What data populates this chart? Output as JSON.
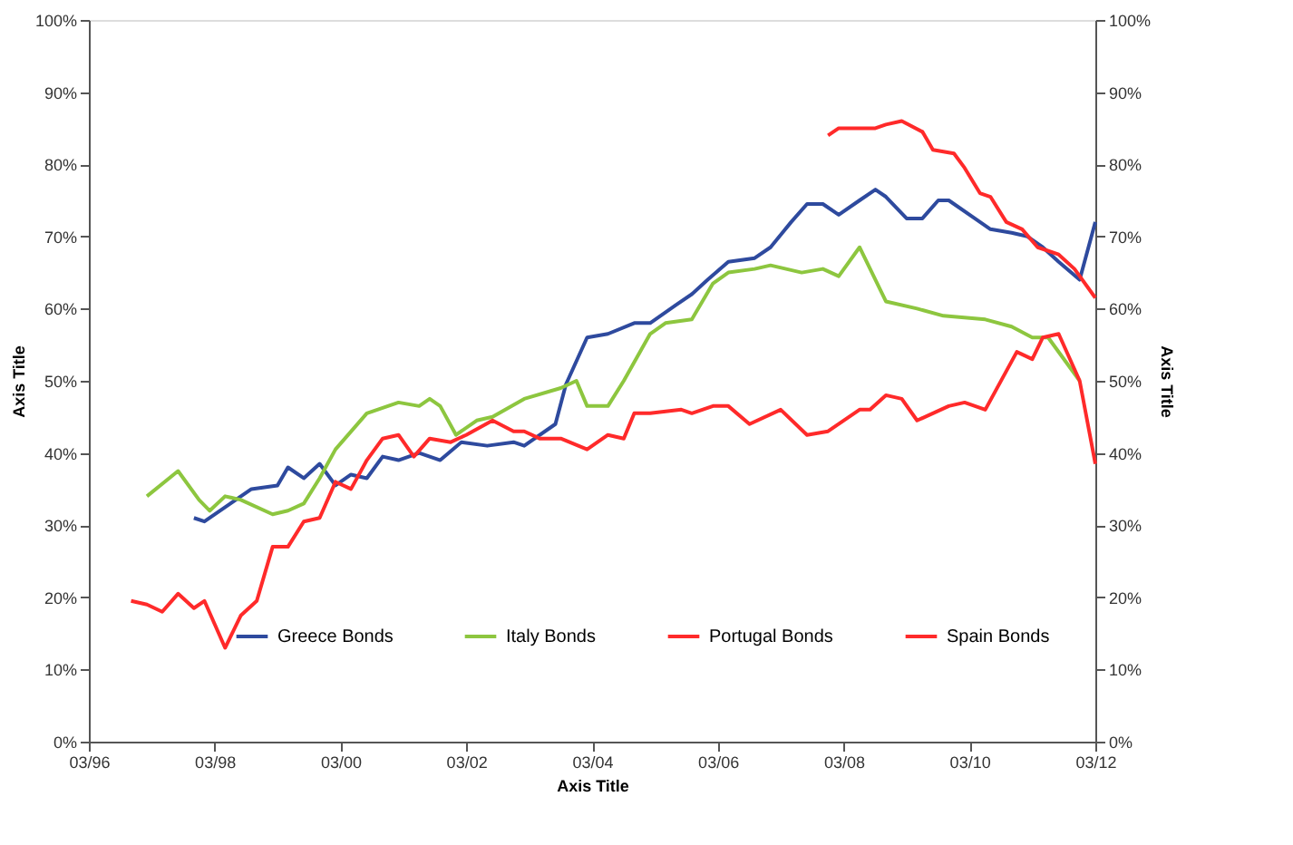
{
  "chart_data": {
    "type": "line",
    "xlabel": "Axis Title",
    "ylabel": "Axis Title",
    "y2label": "Axis Title",
    "xlim": [
      "1996-03",
      "2012-03"
    ],
    "xticks": [
      {
        "value": "1996-03",
        "label": "03/96"
      },
      {
        "value": "1998-03",
        "label": "03/98"
      },
      {
        "value": "2000-03",
        "label": "03/00"
      },
      {
        "value": "2002-03",
        "label": "03/02"
      },
      {
        "value": "2004-03",
        "label": "03/04"
      },
      {
        "value": "2006-03",
        "label": "03/06"
      },
      {
        "value": "2008-03",
        "label": "03/08"
      },
      {
        "value": "2010-03",
        "label": "03/10"
      },
      {
        "value": "2012-03",
        "label": "03/12"
      }
    ],
    "ylim": [
      0,
      100
    ],
    "yticks": [
      {
        "value": 0,
        "label": "0%"
      },
      {
        "value": 10,
        "label": "10%"
      },
      {
        "value": 20,
        "label": "20%"
      },
      {
        "value": 30,
        "label": "30%"
      },
      {
        "value": 40,
        "label": "40%"
      },
      {
        "value": 50,
        "label": "50%"
      },
      {
        "value": 60,
        "label": "60%"
      },
      {
        "value": 70,
        "label": "70%"
      },
      {
        "value": 80,
        "label": "80%"
      },
      {
        "value": 90,
        "label": "90%"
      },
      {
        "value": 100,
        "label": "100%"
      }
    ],
    "y2lim": [
      0,
      100
    ],
    "y2ticks": [
      {
        "value": 0,
        "label": "0%"
      },
      {
        "value": 10,
        "label": "10%"
      },
      {
        "value": 20,
        "label": "20%"
      },
      {
        "value": 30,
        "label": "30%"
      },
      {
        "value": 40,
        "label": "40%"
      },
      {
        "value": 50,
        "label": "50%"
      },
      {
        "value": 60,
        "label": "60%"
      },
      {
        "value": 70,
        "label": "70%"
      },
      {
        "value": 80,
        "label": "80%"
      },
      {
        "value": 90,
        "label": "90%"
      },
      {
        "value": 100,
        "label": "100%"
      }
    ],
    "grid": false,
    "legend": "bottom",
    "marker": "none",
    "line_style": "solid",
    "series": [
      {
        "name": "Greece Bonds",
        "color": "#2e4a9e",
        "x": [
          "1997-11",
          "1998-01",
          "1998-06",
          "1998-10",
          "1999-03",
          "1999-05",
          "1999-08",
          "1999-11",
          "2000-02",
          "2000-05",
          "2000-08",
          "2000-11",
          "2001-02",
          "2001-06",
          "2001-10",
          "2002-02",
          "2002-07",
          "2002-12",
          "2003-02",
          "2003-08",
          "2003-10",
          "2004-02",
          "2004-06",
          "2004-11",
          "2005-02",
          "2005-07",
          "2005-10",
          "2006-01",
          "2006-05",
          "2006-10",
          "2007-01",
          "2007-05",
          "2007-08",
          "2007-11",
          "2008-02",
          "2008-06",
          "2008-09",
          "2008-11",
          "2009-03",
          "2009-06",
          "2009-09",
          "2009-11",
          "2010-04",
          "2010-07",
          "2010-11",
          "2011-02",
          "2011-05",
          "2011-08",
          "2011-12",
          "2012-03"
        ],
        "values": [
          31,
          30.5,
          33,
          35,
          35.5,
          38,
          36.5,
          38.5,
          35.5,
          37,
          36.5,
          39.5,
          39,
          40,
          39,
          41.5,
          41,
          41.5,
          41,
          44,
          49.5,
          56,
          56.5,
          58,
          58,
          60.5,
          62,
          64,
          66.5,
          67,
          68.5,
          72,
          74.5,
          74.5,
          73,
          75,
          76.5,
          75.5,
          72.5,
          72.5,
          75,
          75,
          72.5,
          71,
          70.5,
          70,
          68.5,
          66.5,
          64,
          72
        ]
      },
      {
        "name": "Italy Bonds",
        "color": "#8dc63f",
        "x": [
          "1997-02",
          "1997-08",
          "1997-12",
          "1998-02",
          "1998-05",
          "1998-08",
          "1999-02",
          "1999-05",
          "1999-08",
          "1999-11",
          "2000-02",
          "2000-08",
          "2001-02",
          "2001-06",
          "2001-08",
          "2001-10",
          "2002-01",
          "2002-05",
          "2002-08",
          "2003-02",
          "2003-09",
          "2003-12",
          "2004-02",
          "2004-06",
          "2004-09",
          "2005-02",
          "2005-05",
          "2005-10",
          "2006-02",
          "2006-05",
          "2006-10",
          "2007-01",
          "2007-07",
          "2007-11",
          "2008-02",
          "2008-06",
          "2008-11",
          "2009-05",
          "2009-10",
          "2010-06",
          "2010-11",
          "2011-03",
          "2011-06",
          "2011-12"
        ],
        "values": [
          34,
          37.5,
          33.5,
          32,
          34,
          33.5,
          31.5,
          32,
          33,
          36.5,
          40.5,
          45.5,
          47,
          46.5,
          47.5,
          46.5,
          42.5,
          44.5,
          45,
          47.5,
          49,
          50,
          46.5,
          46.5,
          50,
          56.5,
          58,
          58.5,
          63.5,
          65,
          65.5,
          66,
          65,
          65.5,
          64.5,
          68.5,
          61,
          60,
          59,
          58.5,
          57.5,
          56,
          56,
          50
        ]
      },
      {
        "name": "Portugal Bonds",
        "color": "#ff2a2a",
        "x": [
          "2007-12",
          "2008-02",
          "2008-06",
          "2008-09",
          "2008-11",
          "2009-02",
          "2009-06",
          "2009-08",
          "2009-12",
          "2010-02",
          "2010-05",
          "2010-07",
          "2010-10",
          "2011-01",
          "2011-04",
          "2011-08",
          "2011-11",
          "2012-03"
        ],
        "values": [
          84,
          85,
          85,
          85,
          85.5,
          86,
          84.5,
          82,
          81.5,
          79.5,
          76,
          75.5,
          72,
          71,
          68.5,
          67.5,
          65.5,
          61.5
        ]
      },
      {
        "name": "Spain Bonds",
        "color": "#ff2a2a",
        "x": [
          "1996-11",
          "1997-02",
          "1997-05",
          "1997-08",
          "1997-11",
          "1998-01",
          "1998-05",
          "1998-08",
          "1998-11",
          "1999-02",
          "1999-05",
          "1999-08",
          "1999-11",
          "2000-02",
          "2000-05",
          "2000-08",
          "2000-11",
          "2001-02",
          "2001-05",
          "2001-08",
          "2001-12",
          "2002-03",
          "2002-08",
          "2002-12",
          "2003-02",
          "2003-05",
          "2003-09",
          "2004-02",
          "2004-06",
          "2004-09",
          "2004-11",
          "2005-02",
          "2005-08",
          "2005-10",
          "2006-02",
          "2006-05",
          "2006-09",
          "2007-03",
          "2007-08",
          "2007-12",
          "2008-06",
          "2008-08",
          "2008-11",
          "2009-02",
          "2009-05",
          "2009-11",
          "2010-02",
          "2010-06",
          "2010-12",
          "2011-03",
          "2011-05",
          "2011-08",
          "2011-12",
          "2012-03"
        ],
        "values": [
          19.5,
          19,
          18,
          20.5,
          18.5,
          19.5,
          13,
          17.5,
          19.5,
          27,
          27,
          30.5,
          31,
          36,
          35,
          39,
          42,
          42.5,
          39.5,
          42,
          41.5,
          42.5,
          44.5,
          43,
          43,
          42,
          42,
          40.5,
          42.5,
          42,
          45.5,
          45.5,
          46,
          45.5,
          46.5,
          46.5,
          44,
          46,
          42.5,
          43,
          46,
          46,
          48,
          47.5,
          44.5,
          46.5,
          47,
          46,
          54,
          53,
          56,
          56.5,
          50,
          38.5
        ]
      }
    ]
  }
}
